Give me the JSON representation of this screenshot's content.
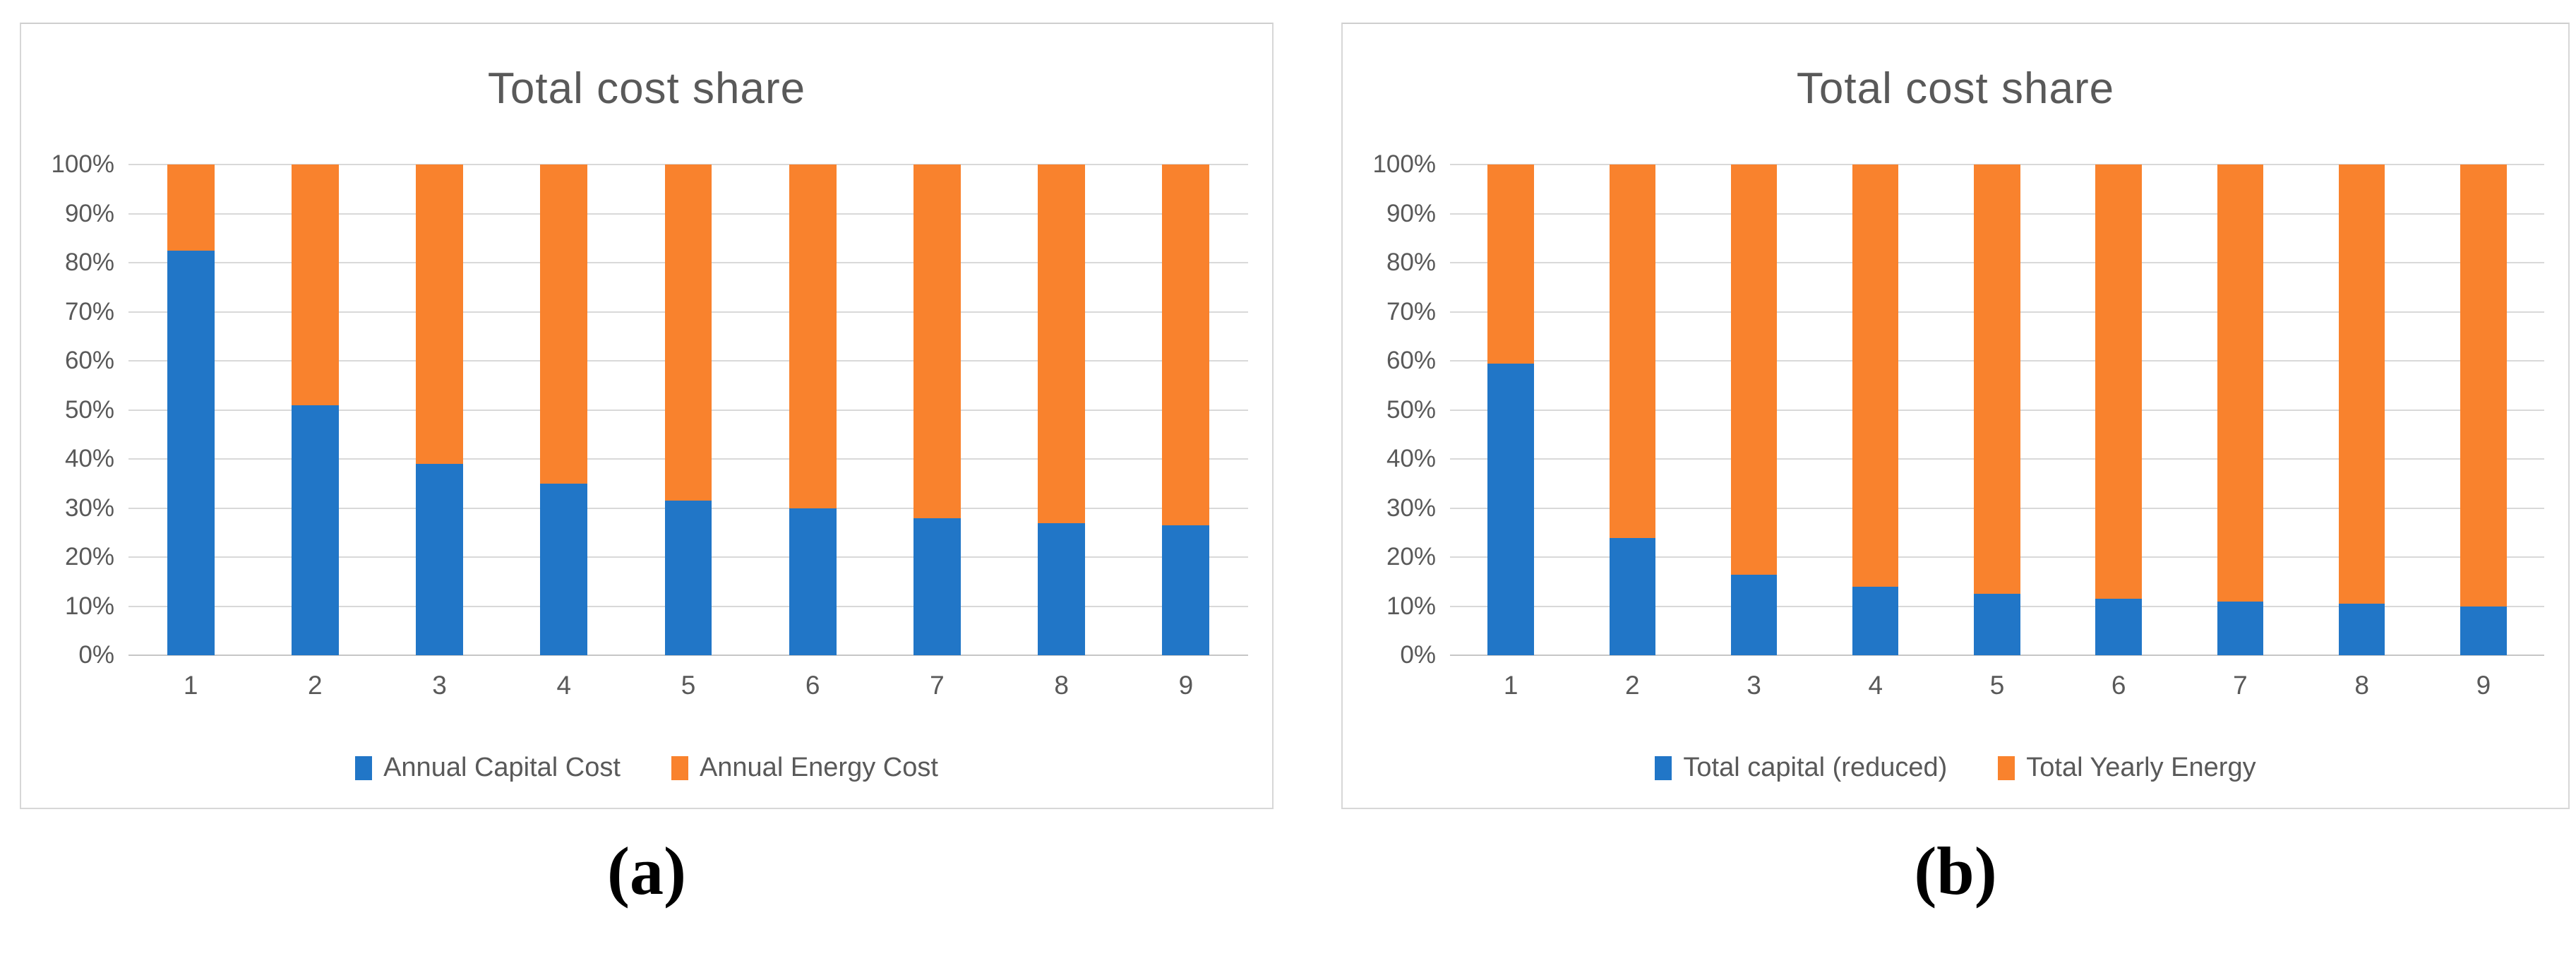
{
  "colors": {
    "text": "#595959",
    "gridline": "#D9D9D9",
    "axis_line": "#C6C6C6",
    "panel_border": "#D7D7D7",
    "capital_blue": "#2176C7",
    "energy_orange": "#F9822D"
  },
  "captions": [
    "(a)",
    "(b)"
  ],
  "chart_data": [
    {
      "panel": "a",
      "type": "bar",
      "stacked": true,
      "percent_stacked": true,
      "title": "Total cost share",
      "categories": [
        "1",
        "2",
        "3",
        "4",
        "5",
        "6",
        "7",
        "8",
        "9"
      ],
      "series": [
        {
          "name": "Annual Capital Cost",
          "color": "#2176C7",
          "values": [
            82.5,
            51,
            39,
            35,
            31.5,
            30,
            28,
            27,
            26.5
          ]
        },
        {
          "name": "Annual Energy Cost",
          "color": "#F9822D",
          "values": [
            17.5,
            49,
            61,
            65,
            68.5,
            70,
            72,
            73,
            73.5
          ]
        }
      ],
      "xlabel": "",
      "ylabel": "",
      "ylim": [
        0,
        100
      ],
      "y_tick_labels": [
        "0%",
        "10%",
        "20%",
        "30%",
        "40%",
        "50%",
        "60%",
        "70%",
        "80%",
        "90%",
        "100%"
      ],
      "grid": true,
      "legend_position": "bottom"
    },
    {
      "panel": "b",
      "type": "bar",
      "stacked": true,
      "percent_stacked": true,
      "title": "Total cost share",
      "categories": [
        "1",
        "2",
        "3",
        "4",
        "5",
        "6",
        "7",
        "8",
        "9"
      ],
      "series": [
        {
          "name": "Total capital (reduced)",
          "color": "#2176C7",
          "values": [
            59.5,
            24,
            16.5,
            14,
            12.5,
            11.5,
            11,
            10.5,
            10
          ]
        },
        {
          "name": "Total Yearly Energy",
          "color": "#F9822D",
          "values": [
            40.5,
            76,
            83.5,
            86,
            87.5,
            88.5,
            89,
            89.5,
            90
          ]
        }
      ],
      "xlabel": "",
      "ylabel": "",
      "ylim": [
        0,
        100
      ],
      "y_tick_labels": [
        "0%",
        "10%",
        "20%",
        "30%",
        "40%",
        "50%",
        "60%",
        "70%",
        "80%",
        "90%",
        "100%"
      ],
      "grid": true,
      "legend_position": "bottom"
    }
  ]
}
